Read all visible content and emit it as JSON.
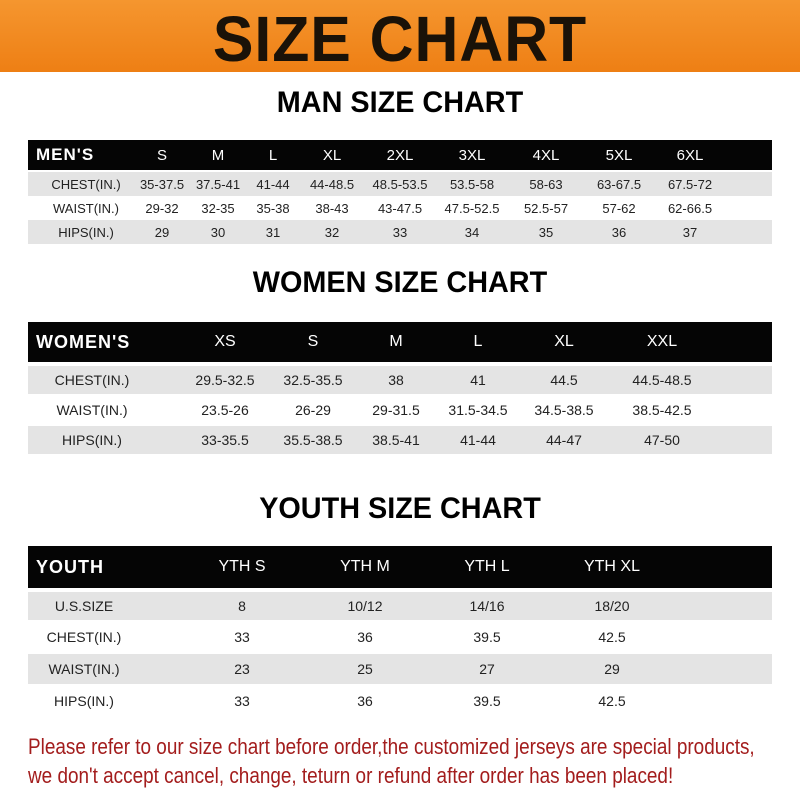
{
  "banner": {
    "title": "SIZE CHART"
  },
  "men": {
    "title": "MAN SIZE CHART",
    "header": [
      "MEN'S",
      "S",
      "M",
      "L",
      "XL",
      "2XL",
      "3XL",
      "4XL",
      "5XL",
      "6XL"
    ],
    "rows": [
      [
        "CHEST(IN.)",
        "35-37.5",
        "37.5-41",
        "41-44",
        "44-48.5",
        "48.5-53.5",
        "53.5-58",
        "58-63",
        "63-67.5",
        "67.5-72"
      ],
      [
        "WAIST(IN.)",
        "29-32",
        "32-35",
        "35-38",
        "38-43",
        "43-47.5",
        "47.5-52.5",
        "52.5-57",
        "57-62",
        "62-66.5"
      ],
      [
        "HIPS(IN.)",
        "29",
        "30",
        "31",
        "32",
        "33",
        "34",
        "35",
        "36",
        "37"
      ]
    ]
  },
  "women": {
    "title": "WOMEN SIZE CHART",
    "header": [
      "WOMEN'S",
      "XS",
      "S",
      "M",
      "L",
      "XL",
      "XXL"
    ],
    "rows": [
      [
        "CHEST(IN.)",
        "29.5-32.5",
        "32.5-35.5",
        "38",
        "41",
        "44.5",
        "44.5-48.5"
      ],
      [
        "WAIST(IN.)",
        "23.5-26",
        "26-29",
        "29-31.5",
        "31.5-34.5",
        "34.5-38.5",
        "38.5-42.5"
      ],
      [
        "HIPS(IN.)",
        "33-35.5",
        "35.5-38.5",
        "38.5-41",
        "41-44",
        "44-47",
        "47-50"
      ]
    ]
  },
  "youth": {
    "title": "YOUTH SIZE CHART",
    "header": [
      "YOUTH",
      "YTH S",
      "YTH M",
      "YTH L",
      "YTH XL"
    ],
    "rows": [
      [
        "U.S.SIZE",
        "8",
        "10/12",
        "14/16",
        "18/20"
      ],
      [
        "CHEST(IN.)",
        "33",
        "36",
        "39.5",
        "42.5"
      ],
      [
        "WAIST(IN.)",
        "23",
        "25",
        "27",
        "29"
      ],
      [
        "HIPS(IN.)",
        "33",
        "36",
        "39.5",
        "42.5"
      ]
    ]
  },
  "footer": {
    "line1": "Please refer to our size chart before order,the customized jerseys are special products,",
    "line2": "we don't accept cancel, change, teturn or refund after order has been placed!"
  },
  "colors": {
    "banner": "#ee7f14",
    "footer_text": "#a31d1d",
    "header_row": "#050505",
    "stripe": "#e4e4e4"
  }
}
